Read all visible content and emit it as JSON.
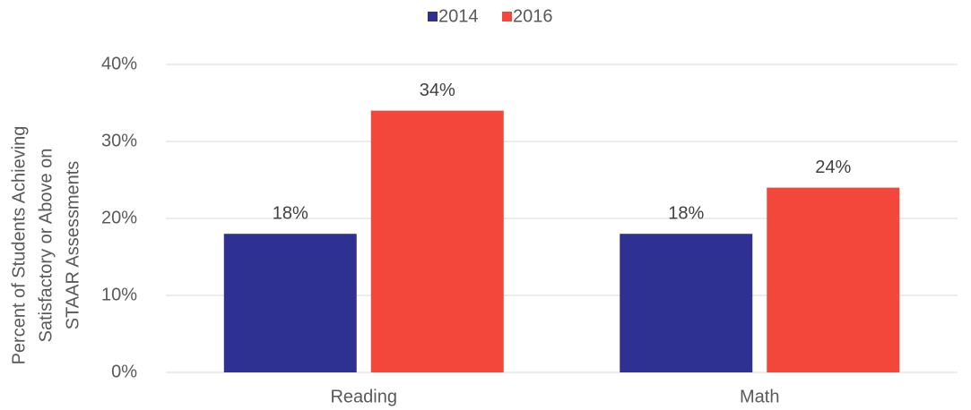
{
  "chart_data": {
    "type": "bar",
    "categories": [
      "Reading",
      "Math"
    ],
    "series": [
      {
        "name": "2014",
        "color": "#2e3192",
        "values": [
          18,
          18
        ],
        "value_labels": [
          "18%",
          "18%"
        ]
      },
      {
        "name": "2016",
        "color": "#f2473a",
        "values": [
          34,
          24
        ],
        "value_labels": [
          "34%",
          "24%"
        ]
      }
    ],
    "ylabel": [
      "Percent of Students Achieving",
      "Satisfactory or Above on",
      "STAAR Assessments"
    ],
    "ylim": [
      0,
      40
    ],
    "yticks": [
      {
        "value": 0,
        "label": "0%"
      },
      {
        "value": 10,
        "label": "10%"
      },
      {
        "value": 20,
        "label": "20%"
      },
      {
        "value": 30,
        "label": "30%"
      },
      {
        "value": 40,
        "label": "40%"
      }
    ],
    "grid": true,
    "legend": "top"
  }
}
